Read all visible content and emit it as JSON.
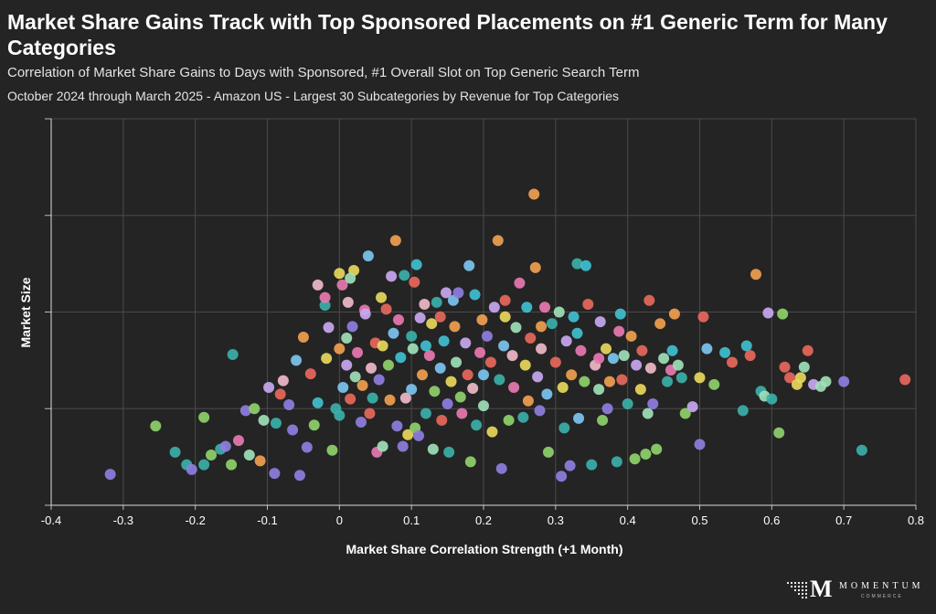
{
  "header": {
    "title": "Market Share Gains Track with Top Sponsored Placements on #1 Generic Term for Many Categories",
    "subtitle": "Correlation of Market Share Gains to Days with Sponsored, #1 Overall Slot on Top Generic Search Term",
    "subtitle2": "October 2024 through March 2025 - Amazon US - Largest 30 Subcategories by Revenue for Top Categories"
  },
  "logo": {
    "name": "MOMENTUM",
    "sub": "COMMERCE",
    "mark": "M"
  },
  "chart_data": {
    "type": "scatter",
    "title": "",
    "xlabel": "Market Share Correlation Strength (+1 Month)",
    "ylabel": "Market Size",
    "xlim": [
      -0.4,
      0.8
    ],
    "ylim": [
      0,
      4
    ],
    "x_ticks": [
      -0.4,
      -0.3,
      -0.2,
      -0.1,
      0,
      0.1,
      0.2,
      0.3,
      0.4,
      0.5,
      0.6,
      0.7,
      0.8
    ],
    "x_tick_labels": [
      "-0.4",
      "-0.3",
      "-0.2",
      "-0.1",
      "0",
      "0.1",
      "0.2",
      "0.3",
      "0.4",
      "0.5",
      "0.6",
      "0.7",
      "0.8"
    ],
    "y_ticks": [
      0,
      1,
      2,
      3,
      4
    ],
    "grid": true,
    "legend": "none",
    "palette": [
      "#8f7ee0",
      "#3bb0a8",
      "#8fd16a",
      "#e8d85c",
      "#f0a050",
      "#e8685c",
      "#e878b0",
      "#c8a8f0",
      "#7cc4f0",
      "#a0e0b8",
      "#40c0d0",
      "#f0b8c8"
    ],
    "points": [
      [
        -0.318,
        0.32,
        0
      ],
      [
        -0.255,
        0.82,
        2
      ],
      [
        -0.228,
        0.55,
        1
      ],
      [
        -0.212,
        0.42,
        1
      ],
      [
        -0.205,
        0.37,
        0
      ],
      [
        -0.188,
        0.42,
        1
      ],
      [
        -0.188,
        0.91,
        2
      ],
      [
        -0.178,
        0.52,
        2
      ],
      [
        -0.165,
        0.58,
        1
      ],
      [
        -0.158,
        0.61,
        0
      ],
      [
        -0.15,
        0.42,
        2
      ],
      [
        -0.148,
        1.56,
        1
      ],
      [
        -0.14,
        0.67,
        6
      ],
      [
        -0.13,
        0.98,
        0
      ],
      [
        -0.125,
        0.52,
        9
      ],
      [
        -0.118,
        1.0,
        2
      ],
      [
        -0.11,
        0.46,
        4
      ],
      [
        -0.105,
        0.88,
        9
      ],
      [
        -0.098,
        1.22,
        7
      ],
      [
        -0.09,
        0.33,
        0
      ],
      [
        -0.088,
        0.85,
        1
      ],
      [
        -0.082,
        1.15,
        5
      ],
      [
        -0.078,
        1.29,
        11
      ],
      [
        -0.07,
        1.04,
        0
      ],
      [
        -0.065,
        0.78,
        0
      ],
      [
        -0.06,
        1.5,
        8
      ],
      [
        -0.055,
        0.31,
        0
      ],
      [
        -0.05,
        1.74,
        4
      ],
      [
        -0.045,
        0.6,
        0
      ],
      [
        -0.04,
        1.36,
        5
      ],
      [
        -0.035,
        0.83,
        2
      ],
      [
        -0.03,
        1.06,
        10
      ],
      [
        -0.02,
        2.07,
        1
      ],
      [
        -0.018,
        1.52,
        3
      ],
      [
        -0.015,
        1.84,
        7
      ],
      [
        -0.01,
        0.57,
        2
      ],
      [
        -0.005,
        1.0,
        1
      ],
      [
        0.0,
        0.93,
        1
      ],
      [
        0.0,
        1.62,
        4
      ],
      [
        0.004,
        2.28,
        6
      ],
      [
        0.005,
        1.22,
        8
      ],
      [
        0.01,
        1.45,
        7
      ],
      [
        0.012,
        2.1,
        11
      ],
      [
        0.015,
        1.1,
        5
      ],
      [
        0.018,
        1.85,
        0
      ],
      [
        0.02,
        2.43,
        3
      ],
      [
        0.022,
        1.33,
        9
      ],
      [
        0.025,
        1.58,
        6
      ],
      [
        0.03,
        0.86,
        0
      ],
      [
        0.032,
        1.24,
        4
      ],
      [
        0.035,
        2.02,
        6
      ],
      [
        0.036,
        1.98,
        7
      ],
      [
        0.04,
        2.58,
        8
      ],
      [
        0.042,
        0.95,
        5
      ],
      [
        0.044,
        1.42,
        11
      ],
      [
        0.046,
        1.11,
        1
      ],
      [
        0.05,
        1.68,
        5
      ],
      [
        0.052,
        0.55,
        6
      ],
      [
        0.055,
        1.3,
        0
      ],
      [
        0.058,
        2.15,
        3
      ],
      [
        0.06,
        0.61,
        9
      ],
      [
        0.065,
        2.03,
        5
      ],
      [
        0.068,
        1.45,
        2
      ],
      [
        0.07,
        1.09,
        4
      ],
      [
        0.072,
        2.37,
        7
      ],
      [
        0.078,
        2.74,
        4
      ],
      [
        0.08,
        0.82,
        0
      ],
      [
        0.082,
        1.92,
        6
      ],
      [
        0.085,
        1.53,
        10
      ],
      [
        0.088,
        0.61,
        0
      ],
      [
        0.09,
        2.38,
        1
      ],
      [
        0.092,
        1.11,
        11
      ],
      [
        0.095,
        0.73,
        3
      ],
      [
        0.1,
        1.2,
        8
      ],
      [
        0.102,
        1.62,
        9
      ],
      [
        0.104,
        2.31,
        5
      ],
      [
        0.105,
        0.8,
        2
      ],
      [
        0.107,
        2.49,
        10
      ],
      [
        0.11,
        0.72,
        0
      ],
      [
        0.112,
        1.94,
        7
      ],
      [
        0.115,
        1.35,
        4
      ],
      [
        0.118,
        2.08,
        11
      ],
      [
        0.12,
        0.95,
        1
      ],
      [
        0.125,
        1.55,
        6
      ],
      [
        0.128,
        1.88,
        3
      ],
      [
        0.13,
        0.58,
        9
      ],
      [
        0.132,
        1.18,
        2
      ],
      [
        0.135,
        2.1,
        1
      ],
      [
        0.14,
        1.42,
        8
      ],
      [
        0.142,
        0.88,
        5
      ],
      [
        0.145,
        1.7,
        10
      ],
      [
        0.148,
        2.2,
        7
      ],
      [
        0.15,
        1.05,
        0
      ],
      [
        0.152,
        0.55,
        1
      ],
      [
        0.155,
        1.28,
        3
      ],
      [
        0.158,
        2.12,
        8
      ],
      [
        0.16,
        1.85,
        4
      ],
      [
        0.162,
        1.48,
        9
      ],
      [
        0.165,
        2.2,
        0
      ],
      [
        0.168,
        1.12,
        2
      ],
      [
        0.17,
        0.95,
        6
      ],
      [
        0.175,
        1.68,
        7
      ],
      [
        0.178,
        1.35,
        5
      ],
      [
        0.18,
        2.48,
        8
      ],
      [
        0.182,
        0.45,
        2
      ],
      [
        0.185,
        1.21,
        11
      ],
      [
        0.188,
        2.18,
        10
      ],
      [
        0.19,
        0.83,
        1
      ],
      [
        0.195,
        1.58,
        6
      ],
      [
        0.198,
        1.92,
        4
      ],
      [
        0.2,
        1.03,
        9
      ],
      [
        0.205,
        1.75,
        0
      ],
      [
        0.21,
        1.48,
        5
      ],
      [
        0.212,
        0.76,
        3
      ],
      [
        0.215,
        2.05,
        7
      ],
      [
        0.22,
        2.74,
        4
      ],
      [
        0.222,
        1.3,
        1
      ],
      [
        0.225,
        0.38,
        0
      ],
      [
        0.228,
        1.65,
        8
      ],
      [
        0.23,
        2.12,
        5
      ],
      [
        0.235,
        0.88,
        2
      ],
      [
        0.24,
        1.55,
        11
      ],
      [
        0.242,
        1.22,
        6
      ],
      [
        0.245,
        1.84,
        9
      ],
      [
        0.25,
        2.3,
        6
      ],
      [
        0.255,
        0.91,
        1
      ],
      [
        0.258,
        1.45,
        3
      ],
      [
        0.26,
        2.05,
        10
      ],
      [
        0.262,
        1.08,
        4
      ],
      [
        0.265,
        1.73,
        5
      ],
      [
        0.27,
        3.22,
        4
      ],
      [
        0.272,
        2.46,
        4
      ],
      [
        0.275,
        1.33,
        7
      ],
      [
        0.278,
        0.98,
        0
      ],
      [
        0.28,
        1.62,
        11
      ],
      [
        0.285,
        2.05,
        6
      ],
      [
        0.288,
        1.15,
        8
      ],
      [
        0.29,
        0.55,
        2
      ],
      [
        0.295,
        1.88,
        1
      ],
      [
        0.3,
        1.48,
        5
      ],
      [
        0.305,
        2.0,
        9
      ],
      [
        0.308,
        0.3,
        0
      ],
      [
        0.31,
        1.22,
        3
      ],
      [
        0.312,
        0.8,
        1
      ],
      [
        0.315,
        1.7,
        7
      ],
      [
        0.32,
        0.41,
        0
      ],
      [
        0.322,
        1.35,
        4
      ],
      [
        0.325,
        1.95,
        10
      ],
      [
        0.33,
        2.5,
        1
      ],
      [
        0.332,
        0.9,
        8
      ],
      [
        0.335,
        1.6,
        6
      ],
      [
        0.34,
        1.28,
        2
      ],
      [
        0.342,
        2.48,
        10
      ],
      [
        0.345,
        2.08,
        5
      ],
      [
        0.35,
        0.42,
        1
      ],
      [
        0.355,
        1.45,
        11
      ],
      [
        0.36,
        1.2,
        9
      ],
      [
        0.362,
        1.9,
        7
      ],
      [
        0.365,
        0.88,
        2
      ],
      [
        0.37,
        1.62,
        3
      ],
      [
        0.372,
        1.0,
        0
      ],
      [
        0.375,
        1.28,
        4
      ],
      [
        0.38,
        1.52,
        8
      ],
      [
        0.385,
        0.45,
        1
      ],
      [
        0.388,
        1.8,
        6
      ],
      [
        0.39,
        1.98,
        10
      ],
      [
        0.392,
        1.3,
        5
      ],
      [
        0.395,
        1.55,
        9
      ],
      [
        0.4,
        1.05,
        1
      ],
      [
        0.405,
        1.75,
        4
      ],
      [
        0.41,
        0.48,
        2
      ],
      [
        0.412,
        1.45,
        7
      ],
      [
        0.418,
        1.2,
        3
      ],
      [
        0.42,
        1.6,
        5
      ],
      [
        0.425,
        0.53,
        2
      ],
      [
        0.428,
        0.95,
        9
      ],
      [
        0.43,
        2.12,
        5
      ],
      [
        0.432,
        1.42,
        11
      ],
      [
        0.435,
        1.05,
        0
      ],
      [
        0.44,
        0.58,
        2
      ],
      [
        0.445,
        1.88,
        4
      ],
      [
        0.45,
        1.52,
        9
      ],
      [
        0.455,
        1.28,
        1
      ],
      [
        0.46,
        1.4,
        6
      ],
      [
        0.462,
        1.6,
        10
      ],
      [
        0.465,
        1.98,
        4
      ],
      [
        0.47,
        1.45,
        9
      ],
      [
        0.475,
        1.32,
        1
      ],
      [
        0.48,
        0.95,
        2
      ],
      [
        0.49,
        1.02,
        7
      ],
      [
        0.5,
        0.63,
        0
      ],
      [
        0.5,
        1.32,
        3
      ],
      [
        0.505,
        1.95,
        5
      ],
      [
        0.51,
        1.62,
        8
      ],
      [
        0.52,
        1.25,
        2
      ],
      [
        0.535,
        1.58,
        10
      ],
      [
        0.545,
        1.48,
        5
      ],
      [
        0.56,
        0.98,
        1
      ],
      [
        0.565,
        1.65,
        10
      ],
      [
        0.57,
        1.55,
        5
      ],
      [
        0.578,
        2.39,
        4
      ],
      [
        0.585,
        1.18,
        1
      ],
      [
        0.59,
        1.13,
        9
      ],
      [
        0.595,
        1.99,
        7
      ],
      [
        0.6,
        1.1,
        1
      ],
      [
        0.61,
        0.75,
        2
      ],
      [
        0.615,
        1.98,
        2
      ],
      [
        0.618,
        1.43,
        5
      ],
      [
        0.625,
        1.32,
        5
      ],
      [
        0.635,
        1.25,
        3
      ],
      [
        0.64,
        1.32,
        3
      ],
      [
        0.645,
        1.43,
        9
      ],
      [
        0.65,
        1.6,
        5
      ],
      [
        0.658,
        1.25,
        7
      ],
      [
        0.668,
        1.23,
        9
      ],
      [
        0.675,
        1.28,
        9
      ],
      [
        0.7,
        1.28,
        0
      ],
      [
        0.725,
        0.57,
        1
      ],
      [
        0.785,
        1.3,
        5
      ],
      [
        -0.03,
        2.28,
        11
      ],
      [
        0.01,
        1.73,
        9
      ],
      [
        0.0,
        2.4,
        3
      ],
      [
        -0.02,
        2.15,
        6
      ],
      [
        0.015,
        2.35,
        9
      ],
      [
        0.06,
        1.65,
        3
      ],
      [
        0.075,
        1.78,
        8
      ],
      [
        0.1,
        1.75,
        1
      ],
      [
        0.12,
        1.65,
        10
      ],
      [
        0.14,
        1.95,
        5
      ],
      [
        0.2,
        1.35,
        8
      ],
      [
        0.23,
        1.95,
        3
      ],
      [
        0.28,
        1.85,
        4
      ],
      [
        0.33,
        1.78,
        10
      ],
      [
        0.36,
        1.52,
        6
      ]
    ]
  }
}
